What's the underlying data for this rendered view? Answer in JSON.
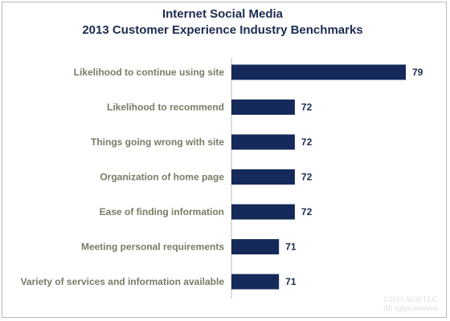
{
  "chart_data": {
    "type": "bar",
    "orientation": "horizontal",
    "title": "Internet Social Media",
    "subtitle": "2013 Customer Experience Industry Benchmarks",
    "categories": [
      "Likelihood to continue using site",
      "Likelihood to recommend",
      "Things going wrong with site",
      "Organization of home page",
      "Ease of finding information",
      "Meeting personal requirements",
      "Variety of services and information available"
    ],
    "values": [
      79,
      72,
      72,
      72,
      72,
      71,
      71
    ],
    "bar_color": "#15295a",
    "xlim": [
      68,
      79
    ],
    "axis": "y-axis line only",
    "grid": false,
    "data_labels": true
  },
  "copyright": {
    "line1": "©2013 ACSI LLC.",
    "line2": "All rights reserved."
  }
}
